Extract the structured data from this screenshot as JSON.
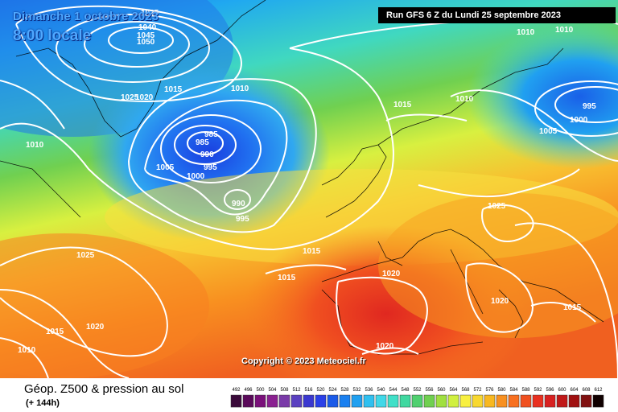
{
  "header": {
    "date": "Dimanche 1 octobre 2023",
    "time": "8:00 locale",
    "run": "Run GFS 6 Z du Lundi 25 septembre 2023"
  },
  "copyright": "Copyright © 2023 Meteociel.fr",
  "legend": {
    "title": "Géop. Z500 & pression au sol",
    "subtitle": "(+ 144h)",
    "scale_values": [
      "492",
      "496",
      "500",
      "504",
      "508",
      "512",
      "516",
      "520",
      "524",
      "528",
      "532",
      "536",
      "540",
      "544",
      "548",
      "552",
      "556",
      "560",
      "564",
      "568",
      "572",
      "576",
      "580",
      "584",
      "588",
      "592",
      "596",
      "600",
      "604",
      "608",
      "612"
    ],
    "scale_colors": [
      "#3a0a3a",
      "#5a0a5a",
      "#7a107a",
      "#8a2090",
      "#7a3aa8",
      "#5a40c0",
      "#3a38d0",
      "#2a40e8",
      "#1a5ae8",
      "#1a80f0",
      "#20a0f0",
      "#30c0f0",
      "#40d8e8",
      "#40e0c8",
      "#40d8a0",
      "#50d070",
      "#70d050",
      "#a0e040",
      "#d0f040",
      "#f8f040",
      "#f8d830",
      "#f8b820",
      "#f89020",
      "#f87020",
      "#f05020",
      "#e83020",
      "#d82020",
      "#c01818",
      "#a01010",
      "#801010",
      "#100000"
    ]
  },
  "isobars": [
    {
      "label": "1025"
    },
    {
      "label": "1040"
    },
    {
      "label": "1045"
    },
    {
      "label": "1050"
    },
    {
      "label": "1025"
    },
    {
      "label": "1020"
    },
    {
      "label": "1015"
    },
    {
      "label": "1010"
    },
    {
      "label": "985"
    },
    {
      "label": "985"
    },
    {
      "label": "990"
    },
    {
      "label": "1005"
    },
    {
      "label": "995"
    },
    {
      "label": "1000"
    },
    {
      "label": "990"
    },
    {
      "label": "995"
    },
    {
      "label": "1010"
    },
    {
      "label": "1015"
    },
    {
      "label": "1010"
    },
    {
      "label": "1010"
    },
    {
      "label": "995"
    },
    {
      "label": "1000"
    },
    {
      "label": "1005"
    },
    {
      "label": "1025"
    },
    {
      "label": "1025"
    },
    {
      "label": "1015"
    },
    {
      "label": "1015"
    },
    {
      "label": "1020"
    },
    {
      "label": "1020"
    },
    {
      "label": "1015"
    },
    {
      "label": "1020"
    },
    {
      "label": "1010"
    },
    {
      "label": "1020"
    },
    {
      "label": "1015"
    },
    {
      "label": "1010"
    }
  ]
}
